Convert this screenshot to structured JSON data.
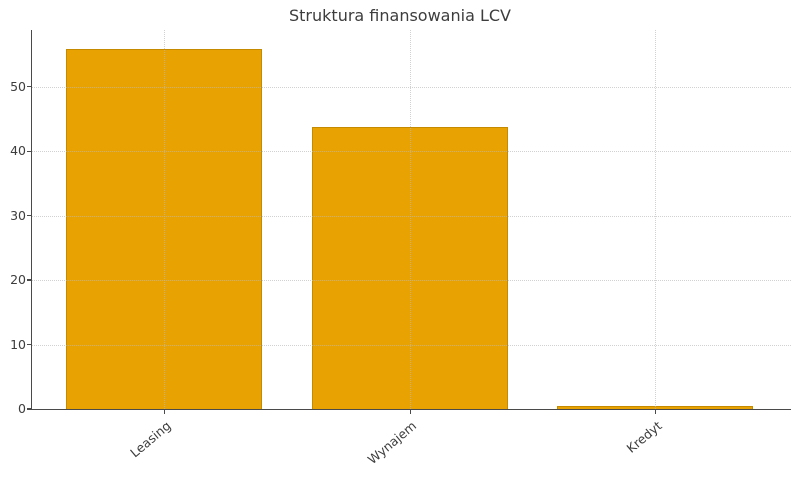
{
  "chart_data": {
    "type": "bar",
    "title": "Struktura finansowania LCV",
    "categories": [
      "Leasing",
      "Wynajem",
      "Kredyt"
    ],
    "values": [
      55.8,
      43.8,
      0.5
    ],
    "xlabel": "",
    "ylabel": "",
    "ylim": [
      0,
      58.8
    ],
    "yticks": [
      0,
      10,
      20,
      30,
      40,
      50
    ],
    "grid": true,
    "grid_style": "dotted",
    "legend": false,
    "x_label_rotation_deg": 40,
    "colors": {
      "bar_fill": "#E8A303",
      "bar_edge": "#C68A00",
      "axis": "#4a4a4a",
      "gridline": "#bcbcbc",
      "text": "#3d3d3d",
      "background": "#ffffff"
    }
  }
}
